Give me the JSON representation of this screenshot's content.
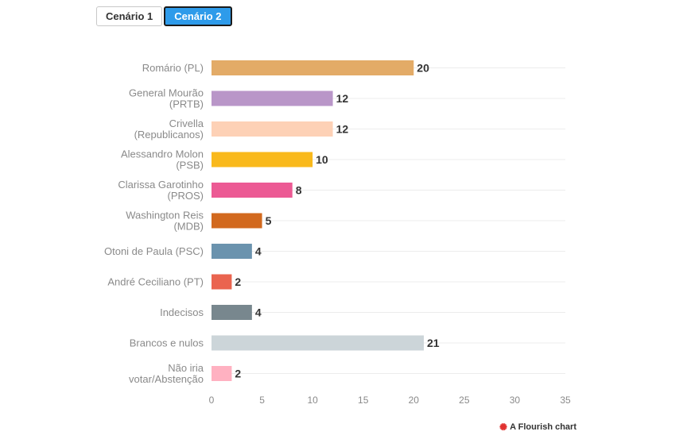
{
  "tabs": [
    {
      "label": "Cenário 1",
      "active": false
    },
    {
      "label": "Cenário 2",
      "active": true
    }
  ],
  "credit": {
    "label": "A Flourish chart",
    "icon": "flourish-logo-icon"
  },
  "chart_data": {
    "type": "bar",
    "orientation": "horizontal",
    "categories": [
      [
        "Romário (PL)"
      ],
      [
        "General Mourão",
        "(PRTB)"
      ],
      [
        "Crivella",
        "(Republicanos)"
      ],
      [
        "Alessandro Molon",
        "(PSB)"
      ],
      [
        "Clarissa Garotinho",
        "(PROS)"
      ],
      [
        "Washington Reis",
        "(MDB)"
      ],
      [
        "Otoni de Paula (PSC)"
      ],
      [
        "André Ceciliano (PT)"
      ],
      [
        "Indecisos"
      ],
      [
        "Brancos e nulos"
      ],
      [
        "Não iria",
        "votar/Abstenção"
      ]
    ],
    "values": [
      20,
      12,
      12,
      10,
      8,
      5,
      4,
      2,
      4,
      21,
      2
    ],
    "colors": [
      "#e3ab67",
      "#b996c8",
      "#fdd1b6",
      "#f9b91c",
      "#ec5a94",
      "#d2691e",
      "#6b93ae",
      "#ea644f",
      "#78878e",
      "#ccd5d9",
      "#ffb1c1"
    ],
    "xlim": [
      0,
      35
    ],
    "xticks": [
      0,
      5,
      10,
      15,
      20,
      25,
      30,
      35
    ],
    "grid": true,
    "data_labels": true
  }
}
